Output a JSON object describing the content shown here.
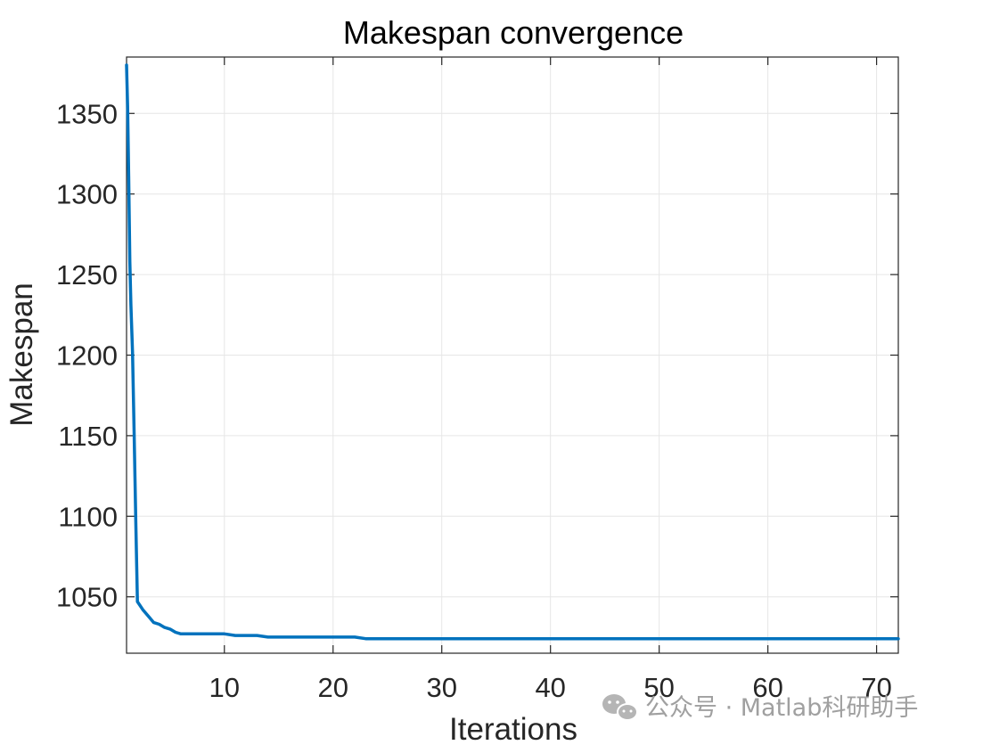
{
  "chart_data": {
    "type": "line",
    "title": "Makespan convergence",
    "xlabel": "Iterations",
    "ylabel": "Makespan",
    "xlim": [
      1,
      72
    ],
    "ylim": [
      1015,
      1385
    ],
    "xticks": [
      10,
      20,
      30,
      40,
      50,
      60,
      70
    ],
    "yticks": [
      1050,
      1100,
      1150,
      1200,
      1250,
      1300,
      1350
    ],
    "grid": true,
    "series": [
      {
        "color": "#0072BD",
        "x": [
          1,
          1.1,
          1.2,
          1.3,
          1.4,
          1.55,
          1.7,
          1.85,
          2,
          2.5,
          3,
          3.5,
          4,
          4.5,
          5,
          5.5,
          6,
          7,
          8,
          10,
          11,
          13,
          14,
          18,
          22,
          23,
          30,
          40,
          50,
          60,
          72
        ],
        "values": [
          1380,
          1354,
          1311,
          1258,
          1231,
          1202,
          1152,
          1096,
          1047,
          1042,
          1038,
          1034,
          1033,
          1031,
          1030,
          1028,
          1027,
          1027,
          1027,
          1027,
          1026,
          1026,
          1025,
          1025,
          1025,
          1024,
          1024,
          1024,
          1024,
          1024,
          1024
        ]
      }
    ]
  },
  "watermark": {
    "icon": "wechat-icon",
    "text": "公众号 · Matlab科研助手"
  }
}
